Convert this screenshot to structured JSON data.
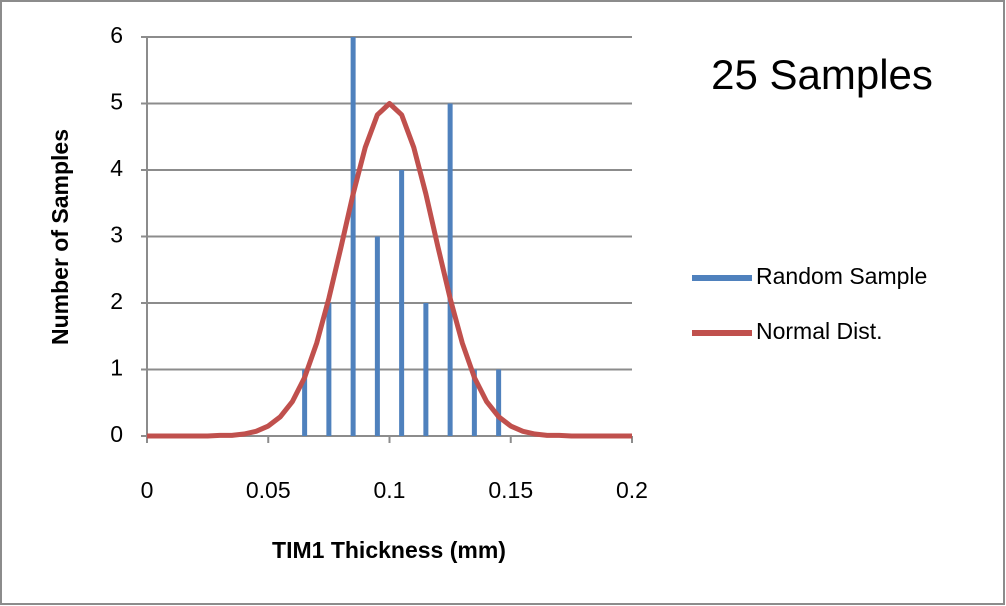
{
  "chart_data": {
    "type": "bar",
    "annotation": "25 Samples",
    "x_label": "TIM1 Thickness (mm)",
    "y_label": "Number of Samples",
    "xlim": [
      0,
      0.2
    ],
    "xticks": [
      0,
      0.05,
      0.1,
      0.15,
      0.2
    ],
    "ylim": [
      0,
      6
    ],
    "yticks": [
      0,
      1,
      2,
      3,
      4,
      5,
      6
    ],
    "grid": true,
    "legend": "right",
    "series": [
      {
        "name": "Random Sample",
        "color": "#4f81bd",
        "type": "bar",
        "x": [
          0.045,
          0.055,
          0.065,
          0.075,
          0.085,
          0.095,
          0.105,
          0.115,
          0.125,
          0.135,
          0.145,
          0.155
        ],
        "values": [
          0,
          0,
          1,
          2,
          6,
          3,
          4,
          2,
          5,
          1,
          1,
          0
        ]
      },
      {
        "name": "Normal Dist.",
        "color": "#c0504d",
        "type": "line",
        "x": [
          0,
          0.005,
          0.01,
          0.015,
          0.02,
          0.025,
          0.03,
          0.035,
          0.04,
          0.045,
          0.05,
          0.055,
          0.06,
          0.065,
          0.07,
          0.075,
          0.08,
          0.085,
          0.09,
          0.095,
          0.1,
          0.105,
          0.11,
          0.115,
          0.12,
          0.125,
          0.13,
          0.135,
          0.14,
          0.145,
          0.15,
          0.155,
          0.16,
          0.165,
          0.17,
          0.175,
          0.18,
          0.185,
          0.19,
          0.195,
          0.2
        ],
        "values": [
          0,
          0,
          0,
          0,
          0,
          0,
          0.01,
          0.01,
          0.03,
          0.07,
          0.15,
          0.29,
          0.52,
          0.88,
          1.4,
          2.07,
          2.84,
          3.64,
          4.34,
          4.83,
          5,
          4.83,
          4.34,
          3.64,
          2.84,
          2.07,
          1.4,
          0.88,
          0.52,
          0.29,
          0.15,
          0.07,
          0.03,
          0.01,
          0.01,
          0,
          0,
          0,
          0,
          0,
          0
        ]
      }
    ]
  }
}
